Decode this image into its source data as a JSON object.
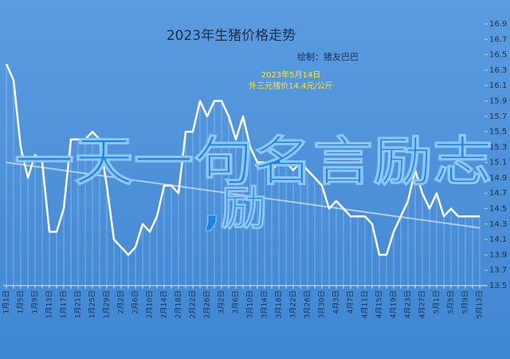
{
  "chart_data": {
    "type": "line",
    "title": "2023年生猪价格走势",
    "subtitle": "绘制：猪友巴巴",
    "annotation": [
      "2023年5月14日",
      "外三元猪价14.4元/公斤"
    ],
    "categories": [
      "1月1日",
      null,
      "1月5日",
      null,
      "1月9日",
      null,
      "1月13日",
      null,
      "1月17日",
      null,
      "1月21日",
      null,
      "1月25日",
      null,
      "1月29日",
      null,
      "2月2日",
      null,
      "2月6日",
      null,
      "2月10日",
      null,
      "2月14日",
      null,
      "2月18日",
      null,
      "2月22日",
      null,
      "2月26日",
      null,
      "3月2日",
      null,
      "3月6日",
      null,
      "3月10日",
      null,
      "3月14日",
      null,
      "3月18日",
      null,
      "3月22日",
      null,
      "3月26日",
      null,
      "3月30日",
      null,
      "4月3日",
      null,
      "4月7日",
      null,
      "4月11日",
      null,
      "4月15日",
      null,
      "4月19日",
      null,
      "4月23日",
      null,
      "4月27日",
      null,
      "5月1日",
      null,
      "5月5日",
      null,
      "5月9日",
      null,
      "5月13日"
    ],
    "values": [
      16.38,
      16.17,
      15.3,
      14.9,
      15.2,
      15.1,
      14.2,
      14.2,
      14.5,
      15.4,
      15.4,
      15.4,
      15.5,
      15.4,
      14.8,
      14.1,
      14.0,
      13.9,
      14.0,
      14.3,
      14.2,
      14.4,
      14.8,
      14.8,
      14.7,
      15.5,
      15.5,
      15.9,
      15.7,
      15.9,
      15.9,
      15.7,
      15.4,
      15.7,
      15.3,
      15.1,
      15.1,
      15.0,
      15.1,
      15.1,
      15.0,
      15.1,
      15.0,
      14.9,
      14.8,
      14.5,
      14.6,
      14.5,
      14.4,
      14.4,
      14.4,
      14.3,
      13.9,
      13.9,
      14.2,
      14.4,
      14.6,
      15.0,
      14.7,
      14.5,
      14.7,
      14.4,
      14.5,
      14.4,
      14.4,
      14.4,
      14.4
    ],
    "color": "#ffffff",
    "trendline": [
      15.1,
      14.25
    ],
    "ylim": [
      13.5,
      16.9
    ],
    "yticks": [
      13.5,
      13.7,
      13.9,
      14.1,
      14.3,
      14.5,
      14.7,
      14.9,
      15.1,
      15.3,
      15.5,
      15.7,
      15.9,
      16.1,
      16.3,
      16.5,
      16.7,
      16.9
    ]
  },
  "overlay": {
    "line1": "一天一句名言励志",
    "line2": ",励"
  }
}
